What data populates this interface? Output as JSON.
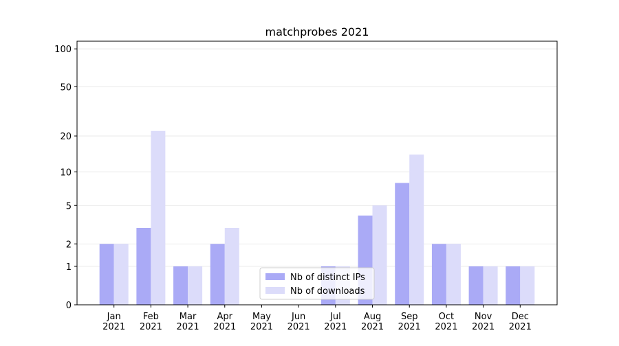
{
  "chart_data": {
    "type": "bar",
    "title": "matchprobes 2021",
    "categories": [
      "Jan\n2021",
      "Feb\n2021",
      "Mar\n2021",
      "Apr\n2021",
      "May\n2021",
      "Jun\n2021",
      "Jul\n2021",
      "Aug\n2021",
      "Sep\n2021",
      "Oct\n2021",
      "Nov\n2021",
      "Dec\n2021"
    ],
    "series": [
      {
        "name": "Nb of distinct IPs",
        "color": "#aaaaf6",
        "values": [
          2,
          3,
          1,
          2,
          0,
          0,
          1,
          4,
          8,
          2,
          1,
          1
        ]
      },
      {
        "name": "Nb of downloads",
        "color": "#dcdcfa",
        "values": [
          2,
          22,
          1,
          3,
          0,
          0,
          1,
          5,
          14,
          2,
          1,
          1
        ]
      }
    ],
    "yscale": "log1p",
    "ylim": [
      0,
      115
    ],
    "yticks": [
      0,
      1,
      2,
      5,
      10,
      20,
      50,
      100
    ],
    "grid": true,
    "legend": "lower center"
  }
}
